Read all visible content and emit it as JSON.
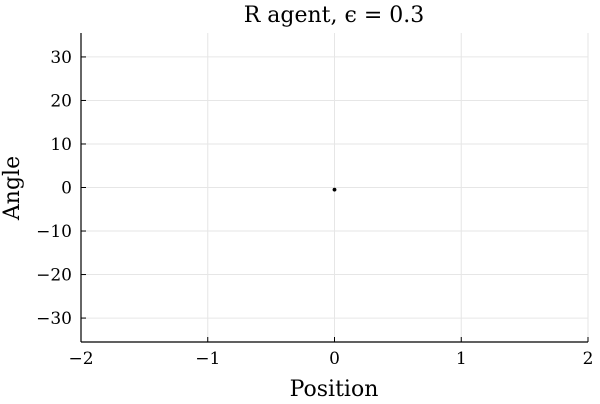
{
  "chart_data": {
    "type": "scatter",
    "title": "R agent, ϵ = 0.3",
    "xlabel": "Position",
    "ylabel": "Angle",
    "xlim": [
      -2,
      2
    ],
    "ylim": [
      -35.5,
      35.5
    ],
    "x_ticks": [
      -2,
      -1,
      0,
      1,
      2
    ],
    "y_ticks": [
      -30,
      -20,
      -10,
      0,
      10,
      20,
      30
    ],
    "x_tick_labels": [
      "−2",
      "−1",
      "0",
      "1",
      "2"
    ],
    "y_tick_labels": [
      "−30",
      "−20",
      "−10",
      "0",
      "10",
      "20",
      "30"
    ],
    "grid": true,
    "legend": "none",
    "points": [
      {
        "x": 0.0,
        "y": -0.5
      }
    ],
    "colors": {
      "marker": "#000000",
      "grid": "#e6e6e6",
      "axis": "#000000"
    }
  }
}
